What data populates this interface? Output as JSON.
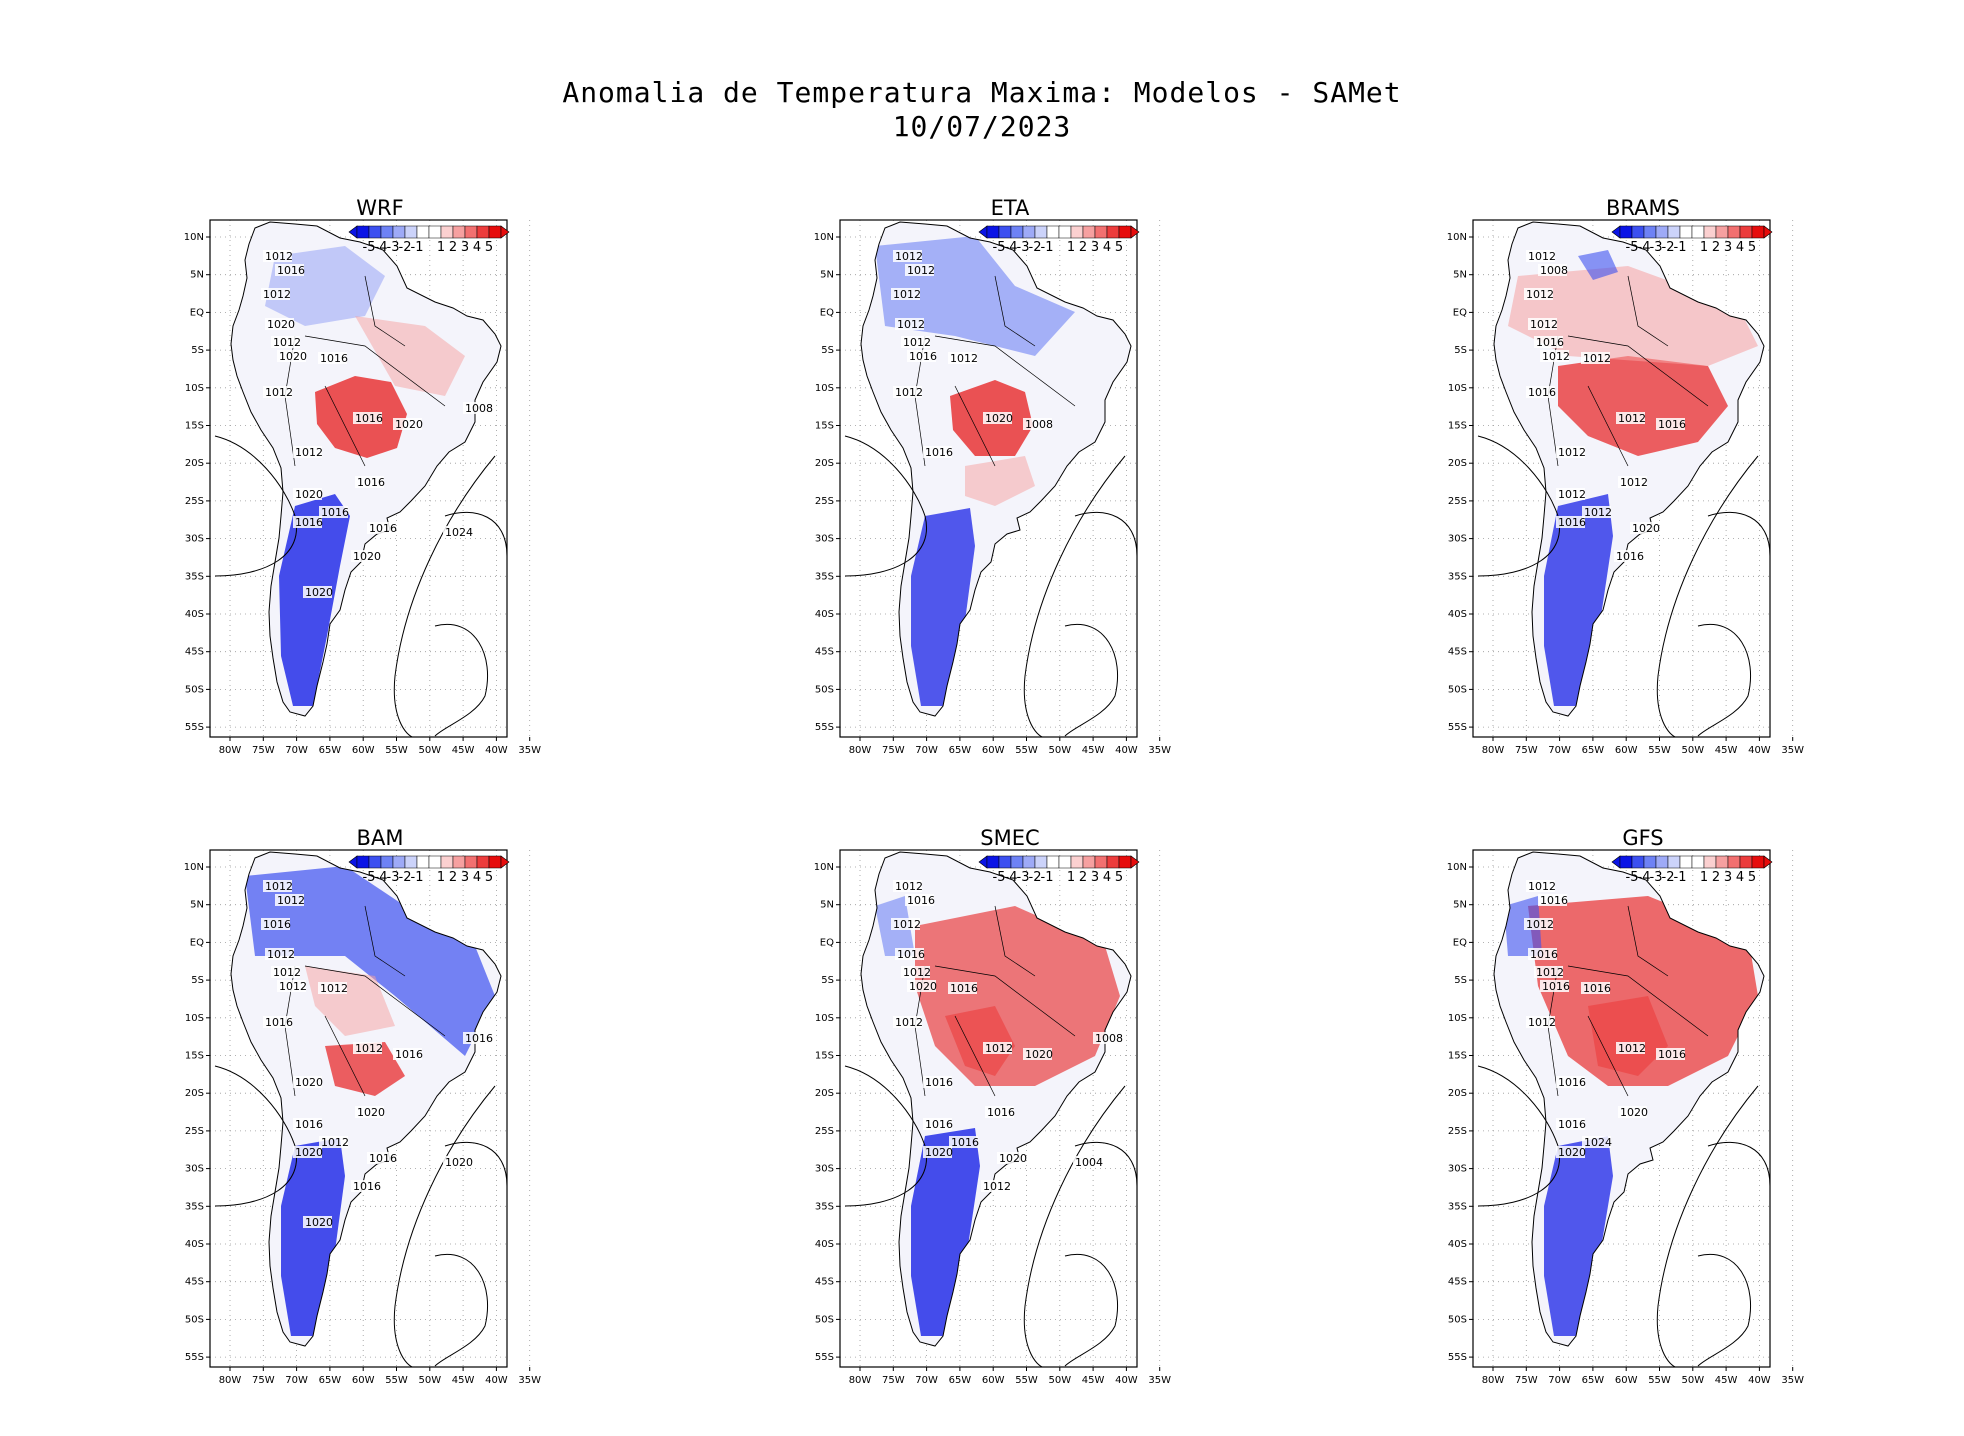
{
  "title": {
    "line1": "Anomalia de Temperatura Maxima: Modelos - SAMet",
    "line2": "10/07/2023"
  },
  "lat_ticks": [
    "10N",
    "5N",
    "EQ",
    "5S",
    "10S",
    "15S",
    "20S",
    "25S",
    "30S",
    "35S",
    "40S",
    "45S",
    "50S",
    "55S"
  ],
  "lon_ticks": [
    "80W",
    "75W",
    "70W",
    "65W",
    "60W",
    "55W",
    "50W",
    "45W",
    "40W",
    "35W"
  ],
  "colorbar": {
    "labels": [
      "-5",
      "-4",
      "-3",
      "-2",
      "-1",
      "1",
      "2",
      "3",
      "4",
      "5"
    ],
    "colors": [
      "#0a14e6",
      "#3c50f0",
      "#6e82f5",
      "#9eaaf7",
      "#ccd3fa",
      "#ffffff",
      "#ffffff",
      "#fbd0d0",
      "#f6a0a0",
      "#f27070",
      "#ec3c3c",
      "#e60c0c"
    ]
  },
  "panels": [
    {
      "name": "WRF",
      "isobars": [
        "1012",
        "1016",
        "1012",
        "1020",
        "1012",
        "1020",
        "1016",
        "1012",
        "1012",
        "1016",
        "1020",
        "1016",
        "1020",
        "1016",
        "1016",
        "1016",
        "1020",
        "1008",
        "1024",
        "1020"
      ]
    },
    {
      "name": "ETA",
      "isobars": [
        "1012",
        "1012",
        "1012",
        "1012",
        "1012",
        "1016",
        "1012",
        "1012",
        "1016",
        "1020",
        "1008"
      ]
    },
    {
      "name": "BRAMS",
      "isobars": [
        "1012",
        "1008",
        "1012",
        "1012",
        "1016",
        "1012",
        "1012",
        "1016",
        "1012",
        "1012",
        "1016",
        "1012",
        "1012",
        "1016",
        "1012",
        "1020",
        "1016"
      ]
    },
    {
      "name": "BAM",
      "isobars": [
        "1012",
        "1012",
        "1016",
        "1012",
        "1012",
        "1012",
        "1012",
        "1016",
        "1020",
        "1012",
        "1016",
        "1020",
        "1016",
        "1020",
        "1012",
        "1016",
        "1016",
        "1016",
        "1020",
        "1020"
      ]
    },
    {
      "name": "SMEC",
      "isobars": [
        "1012",
        "1016",
        "1012",
        "1016",
        "1012",
        "1020",
        "1016",
        "1012",
        "1016",
        "1012",
        "1020",
        "1016",
        "1016",
        "1020",
        "1016",
        "1020",
        "1012",
        "1008",
        "1004"
      ]
    },
    {
      "name": "GFS",
      "isobars": [
        "1012",
        "1016",
        "1012",
        "1016",
        "1012",
        "1016",
        "1016",
        "1012",
        "1016",
        "1012",
        "1016",
        "1020",
        "1016",
        "1020",
        "1024"
      ]
    }
  ]
}
